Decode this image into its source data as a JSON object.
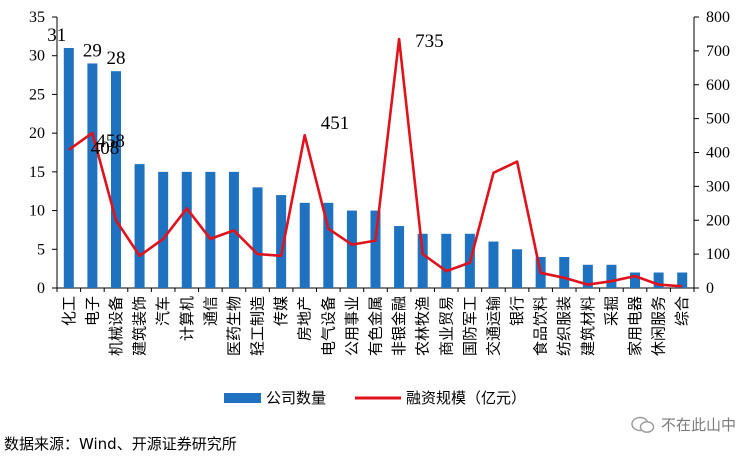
{
  "chart_data": {
    "type": "bar",
    "categories": [
      "化工",
      "电子",
      "机械设备",
      "建筑装饰",
      "汽车",
      "计算机",
      "通信",
      "医药生物",
      "轻工制造",
      "传媒",
      "房地产",
      "电气设备",
      "公用事业",
      "有色金属",
      "非银金融",
      "农林牧渔",
      "商业贸易",
      "国防军工",
      "交通运输",
      "银行",
      "食品饮料",
      "纺织服装",
      "建筑材料",
      "采掘",
      "家用电器",
      "休闲服务",
      "综合"
    ],
    "series": [
      {
        "name": "公司数量",
        "kind": "bar",
        "axis": "left",
        "color": "#1f72c0",
        "values": [
          31,
          29,
          28,
          16,
          15,
          15,
          15,
          15,
          13,
          12,
          11,
          11,
          10,
          10,
          8,
          7,
          7,
          7,
          6,
          5,
          4,
          4,
          3,
          3,
          2,
          2,
          2
        ]
      },
      {
        "name": "融资规模（亿元）",
        "kind": "line",
        "axis": "right",
        "color": "#e0121c",
        "values": [
          408,
          458,
          200,
          95,
          145,
          235,
          145,
          170,
          100,
          95,
          451,
          175,
          128,
          140,
          735,
          100,
          50,
          75,
          340,
          373,
          45,
          30,
          10,
          20,
          35,
          10,
          5
        ]
      }
    ],
    "bar_labels": [
      {
        "index": 0,
        "text": "31"
      },
      {
        "index": 1,
        "text": "29"
      },
      {
        "index": 2,
        "text": "28"
      }
    ],
    "line_labels": [
      {
        "index": 0,
        "text": "408"
      },
      {
        "index": 1,
        "text": "458"
      },
      {
        "index": 10,
        "text": "451"
      },
      {
        "index": 14,
        "text": "735"
      }
    ],
    "y_left": {
      "min": 0,
      "max": 35,
      "ticks": [
        0,
        5,
        10,
        15,
        20,
        25,
        30,
        35
      ]
    },
    "y_right": {
      "min": 0,
      "max": 800,
      "ticks": [
        0,
        100,
        200,
        300,
        400,
        500,
        600,
        700,
        800
      ]
    },
    "legend_position": "bottom",
    "grid": false
  },
  "footer": {
    "source": "数据来源：Wind、开源证券研究所",
    "watermark": "不在此山中"
  }
}
